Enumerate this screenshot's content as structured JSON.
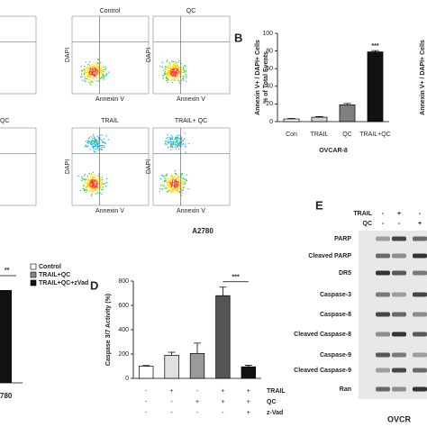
{
  "panel_a": {
    "plots": [
      {
        "label": "Control"
      },
      {
        "label": "QC"
      },
      {
        "label": "TRAIL"
      },
      {
        "label": "TRAIL+ QC"
      }
    ],
    "partial_label": "QC",
    "x_label": "Annexin V",
    "y_label": "DAPI",
    "caption": "A2780"
  },
  "chart_data": [
    {
      "type": "bar",
      "label": "B",
      "title": "OVCAR-8",
      "y_label": [
        "Annexin V+ / DAPI+ Cells",
        "% of Total Events"
      ],
      "categories": [
        "Con",
        "TRAIL",
        "QC",
        "TRAIL+QC"
      ],
      "values": [
        3,
        5,
        19,
        79
      ],
      "errors": [
        0.6,
        0.7,
        1.5,
        1.5
      ],
      "colors": [
        "#ffffff",
        "#d0d0d0",
        "#808080",
        "#111111"
      ],
      "ylim": [
        0,
        100
      ],
      "yticks": [
        0,
        20,
        40,
        60,
        80,
        100
      ],
      "annotation": "***"
    },
    {
      "type": "bar",
      "label": "D",
      "y_label": "Caspase 3/7 Activity (%)",
      "categories": [
        null,
        null,
        null,
        null,
        null
      ],
      "values": [
        100,
        190,
        205,
        680,
        95
      ],
      "errors": [
        5,
        25,
        85,
        70,
        12
      ],
      "colors": [
        "#ffffff",
        "#e0e0e0",
        "#9a9a9a",
        "#555555",
        "#111111"
      ],
      "ylim": [
        0,
        800
      ],
      "yticks": [
        0,
        200,
        400,
        600,
        800
      ],
      "annotation": "***",
      "treatments": [
        {
          "name": "TRAIL",
          "signs": [
            "-",
            "+",
            "-",
            "+",
            "+"
          ]
        },
        {
          "name": "QC",
          "signs": [
            "-",
            "-",
            "+",
            "+",
            "+"
          ]
        },
        {
          "name": "z-Vad",
          "signs": [
            "-",
            "-",
            "-",
            "-",
            "+"
          ]
        }
      ]
    }
  ],
  "panel_b_right": {
    "y_label": "Annexin V+ / DAPI+ Cells"
  },
  "panel_c": {
    "legend": [
      "Control",
      "TRAIL+QC",
      "TRAIL+QC+zVad"
    ],
    "annotation": "**",
    "caption": "780"
  },
  "panel_e": {
    "label": "E",
    "conditions": [
      {
        "name": "TRAIL",
        "signs": [
          "-",
          "+",
          "-"
        ]
      },
      {
        "name": "QC",
        "signs": [
          "-",
          "-",
          "+"
        ]
      }
    ],
    "rows": [
      "PARP",
      "Cleaved PARP",
      "DR5",
      "Caspase-3",
      "Caspase-8",
      "Cleaved Caspase-8",
      "Caspase-9",
      "Cleaved Caspase-9",
      "Ran"
    ],
    "caption": "OVCR"
  }
}
